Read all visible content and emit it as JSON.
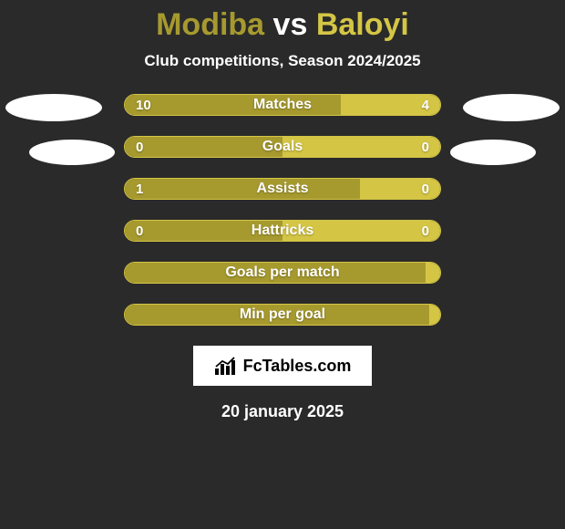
{
  "title": {
    "player1": "Modiba",
    "separator": "vs",
    "player2": "Baloyi",
    "player1_color": "#a69a2f",
    "player2_color": "#d4c545"
  },
  "subtitle": "Club competitions, Season 2024/2025",
  "colors": {
    "background": "#2a2a2a",
    "text": "#ffffff",
    "left_fill": "#a69a2f",
    "right_fill": "#d4c545",
    "border": "#d4c545"
  },
  "bar_track_width": 348,
  "rows": [
    {
      "label": "Matches",
      "left_val": "10",
      "right_val": "4",
      "left_w": 238,
      "right_w": 110,
      "show_vals": true
    },
    {
      "label": "Goals",
      "left_val": "0",
      "right_val": "0",
      "left_w": 174,
      "right_w": 174,
      "show_vals": true
    },
    {
      "label": "Assists",
      "left_val": "1",
      "right_val": "0",
      "left_w": 260,
      "right_w": 88,
      "show_vals": true
    },
    {
      "label": "Hattricks",
      "left_val": "0",
      "right_val": "0",
      "left_w": 174,
      "right_w": 174,
      "show_vals": true
    },
    {
      "label": "Goals per match",
      "left_val": "",
      "right_val": "",
      "left_w": 332,
      "right_w": 16,
      "show_vals": false
    },
    {
      "label": "Min per goal",
      "left_val": "",
      "right_val": "",
      "left_w": 344,
      "right_w": 4,
      "show_vals": false
    }
  ],
  "logo_text": "FcTables.com",
  "date": "20 january 2025"
}
